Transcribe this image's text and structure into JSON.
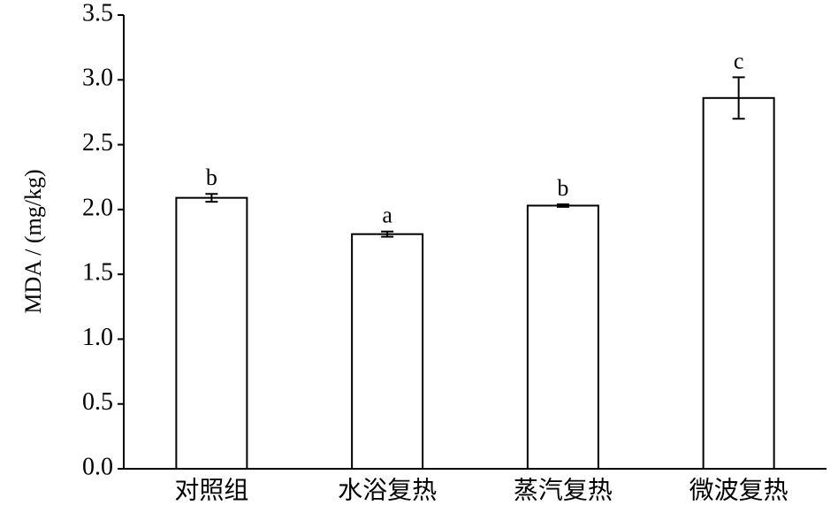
{
  "chart_data": {
    "type": "bar",
    "ylabel": "MDA / (mg/kg)",
    "categories": [
      "对照组",
      "水浴复热",
      "蒸汽复热",
      "微波复热"
    ],
    "values": [
      2.09,
      1.81,
      2.03,
      2.86
    ],
    "errors": [
      0.03,
      0.02,
      0.01,
      0.16
    ],
    "significance_letters": [
      "b",
      "a",
      "b",
      "c"
    ],
    "color": "#ffffff",
    "edgecolor": "#000000",
    "ylim": [
      0,
      3.5
    ],
    "yticks": [
      {
        "value": 0,
        "label": "0.0"
      },
      {
        "value": 0.5,
        "label": "0.5"
      },
      {
        "value": 1,
        "label": "1.0"
      },
      {
        "value": 1.5,
        "label": "1.5"
      },
      {
        "value": 2,
        "label": "2.0"
      },
      {
        "value": 2.5,
        "label": "2.5"
      },
      {
        "value": 3,
        "label": "3.0"
      },
      {
        "value": 3.5,
        "label": "3.5"
      }
    ],
    "grid": false
  }
}
